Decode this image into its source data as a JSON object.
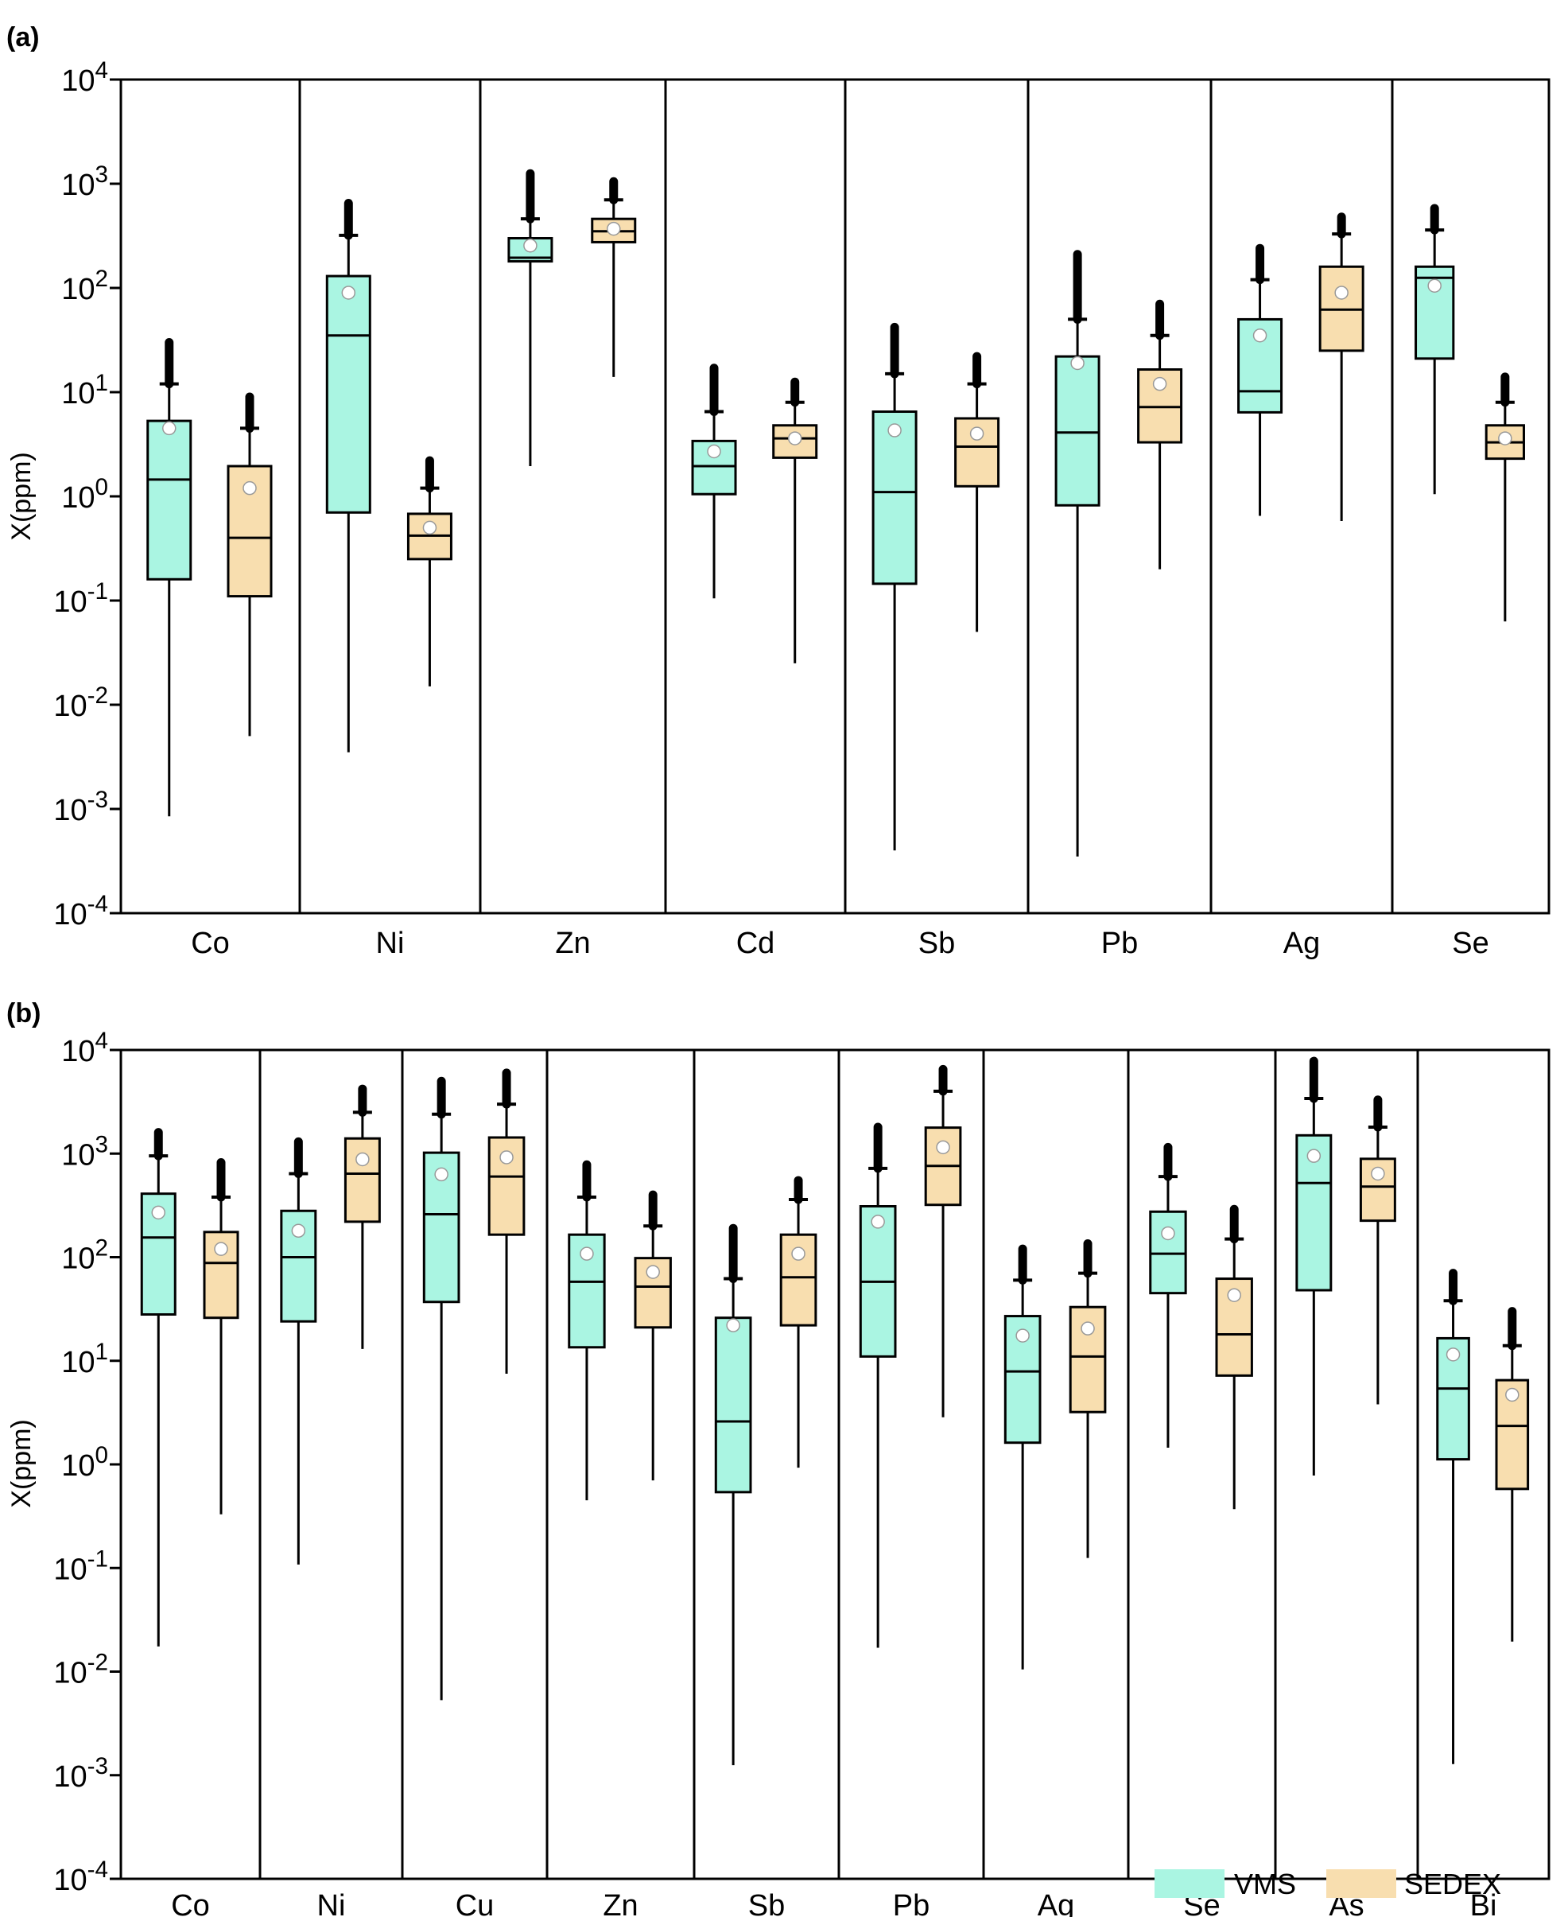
{
  "colors": {
    "vms": "#aaf5e2",
    "sedex": "#f8deaf",
    "axis": "#000000",
    "mean_marker": "#ffffff"
  },
  "legend": {
    "items": [
      {
        "name": "VMS",
        "key": "vms"
      },
      {
        "name": "SEDEX",
        "key": "sedex"
      }
    ],
    "placement": "bottom-right of panel b"
  },
  "chart_data": [
    {
      "type": "box",
      "panel_label": "(a)",
      "ylabel": "X(ppm)",
      "yscale": "log",
      "ylim": [
        0.0001,
        10000
      ],
      "y_ticks": [
        {
          "base": "10",
          "exp": "-4"
        },
        {
          "base": "10",
          "exp": "-3"
        },
        {
          "base": "10",
          "exp": "-2"
        },
        {
          "base": "10",
          "exp": "-1"
        },
        {
          "base": "10",
          "exp": "0"
        },
        {
          "base": "10",
          "exp": "1"
        },
        {
          "base": "10",
          "exp": "2"
        },
        {
          "base": "10",
          "exp": "3"
        },
        {
          "base": "10",
          "exp": "4"
        }
      ],
      "series_names": [
        "VMS",
        "SEDEX"
      ],
      "categories": [
        {
          "label": "Co",
          "vms": {
            "low": 0.00085,
            "q1": 0.16,
            "median": 1.45,
            "q3": 5.3,
            "high": 12,
            "out_max": 30,
            "mean": 4.5
          },
          "sedex": {
            "low": 0.005,
            "q1": 0.11,
            "median": 0.4,
            "q3": 1.95,
            "high": 4.5,
            "out_max": 9,
            "mean": 1.2
          }
        },
        {
          "label": "Ni",
          "vms": {
            "low": 0.0035,
            "q1": 0.7,
            "median": 35,
            "q3": 130,
            "high": 320,
            "out_max": 650,
            "mean": 90
          },
          "sedex": {
            "low": 0.015,
            "q1": 0.25,
            "median": 0.42,
            "q3": 0.68,
            "high": 1.2,
            "out_max": 2.2,
            "mean": 0.5
          }
        },
        {
          "label": "Zn",
          "vms": {
            "low": 1.95,
            "q1": 180,
            "median": 195,
            "q3": 300,
            "high": 460,
            "out_max": 1250,
            "mean": 255
          },
          "sedex": {
            "low": 14,
            "q1": 275,
            "median": 350,
            "q3": 460,
            "high": 700,
            "out_max": 1050,
            "mean": 370
          }
        },
        {
          "label": "Cd",
          "vms": {
            "low": 0.105,
            "q1": 1.05,
            "median": 1.95,
            "q3": 3.4,
            "high": 6.5,
            "out_max": 17,
            "mean": 2.7
          },
          "sedex": {
            "low": 0.025,
            "q1": 2.35,
            "median": 3.6,
            "q3": 4.8,
            "high": 8,
            "out_max": 12.5,
            "mean": 3.6
          }
        },
        {
          "label": "Sb",
          "vms": {
            "low": 0.0004,
            "q1": 0.145,
            "median": 1.1,
            "q3": 6.5,
            "high": 15,
            "out_max": 42,
            "mean": 4.3
          },
          "sedex": {
            "low": 0.05,
            "q1": 1.25,
            "median": 3,
            "q3": 5.6,
            "high": 12,
            "out_max": 22,
            "mean": 4
          }
        },
        {
          "label": "Pb",
          "vms": {
            "low": 0.00035,
            "q1": 0.82,
            "median": 4.1,
            "q3": 22,
            "high": 50,
            "out_max": 210,
            "mean": 19
          },
          "sedex": {
            "low": 0.2,
            "q1": 3.3,
            "median": 7.2,
            "q3": 16.5,
            "high": 35,
            "out_max": 70,
            "mean": 12
          }
        },
        {
          "label": "Ag",
          "vms": {
            "low": 0.65,
            "q1": 6.4,
            "median": 10.2,
            "q3": 50,
            "high": 120,
            "out_max": 240,
            "mean": 35
          },
          "sedex": {
            "low": 0.58,
            "q1": 25,
            "median": 62,
            "q3": 160,
            "high": 330,
            "out_max": 480,
            "mean": 90
          }
        },
        {
          "label": "Se",
          "vms": {
            "low": 1.05,
            "q1": 21,
            "median": 125,
            "q3": 160,
            "high": 360,
            "out_max": 580,
            "mean": 105
          },
          "sedex": {
            "low": 0.063,
            "q1": 2.3,
            "median": 3.3,
            "q3": 4.8,
            "high": 8,
            "out_max": 14,
            "mean": 3.6
          }
        }
      ]
    },
    {
      "type": "box",
      "panel_label": "(b)",
      "ylabel": "X(ppm)",
      "yscale": "log",
      "ylim": [
        0.0001,
        10000
      ],
      "y_ticks": [
        {
          "base": "10",
          "exp": "-4"
        },
        {
          "base": "10",
          "exp": "-3"
        },
        {
          "base": "10",
          "exp": "-2"
        },
        {
          "base": "10",
          "exp": "-1"
        },
        {
          "base": "10",
          "exp": "0"
        },
        {
          "base": "10",
          "exp": "1"
        },
        {
          "base": "10",
          "exp": "2"
        },
        {
          "base": "10",
          "exp": "3"
        },
        {
          "base": "10",
          "exp": "4"
        }
      ],
      "series_names": [
        "VMS",
        "SEDEX"
      ],
      "categories": [
        {
          "label": "Co",
          "vms": {
            "low": 0.0175,
            "q1": 28,
            "median": 155,
            "q3": 410,
            "high": 950,
            "out_max": 1600,
            "mean": 270
          },
          "sedex": {
            "low": 0.33,
            "q1": 26,
            "median": 88,
            "q3": 175,
            "high": 380,
            "out_max": 820,
            "mean": 120
          }
        },
        {
          "label": "Ni",
          "vms": {
            "low": 0.108,
            "q1": 24,
            "median": 100,
            "q3": 280,
            "high": 640,
            "out_max": 1300,
            "mean": 180
          },
          "sedex": {
            "low": 13,
            "q1": 220,
            "median": 640,
            "q3": 1400,
            "high": 2500,
            "out_max": 4200,
            "mean": 880
          }
        },
        {
          "label": "Cu",
          "vms": {
            "low": 0.0053,
            "q1": 37,
            "median": 260,
            "q3": 1020,
            "high": 2400,
            "out_max": 5000,
            "mean": 630
          },
          "sedex": {
            "low": 7.5,
            "q1": 165,
            "median": 600,
            "q3": 1430,
            "high": 3000,
            "out_max": 6000,
            "mean": 920
          }
        },
        {
          "label": "Zn",
          "vms": {
            "low": 0.45,
            "q1": 13.5,
            "median": 58,
            "q3": 165,
            "high": 380,
            "out_max": 780,
            "mean": 108
          },
          "sedex": {
            "low": 0.7,
            "q1": 21,
            "median": 52,
            "q3": 98,
            "high": 200,
            "out_max": 400,
            "mean": 72
          }
        },
        {
          "label": "Sb",
          "vms": {
            "low": 0.00125,
            "q1": 0.54,
            "median": 2.6,
            "q3": 26,
            "high": 62,
            "out_max": 190,
            "mean": 22
          },
          "sedex": {
            "low": 0.93,
            "q1": 22,
            "median": 64,
            "q3": 165,
            "high": 360,
            "out_max": 550,
            "mean": 108
          }
        },
        {
          "label": "Pb",
          "vms": {
            "low": 0.017,
            "q1": 11,
            "median": 58,
            "q3": 310,
            "high": 720,
            "out_max": 1800,
            "mean": 220
          },
          "sedex": {
            "low": 2.85,
            "q1": 320,
            "median": 760,
            "q3": 1780,
            "high": 4000,
            "out_max": 6500,
            "mean": 1150
          }
        },
        {
          "label": "Ag",
          "vms": {
            "low": 0.0105,
            "q1": 1.62,
            "median": 7.9,
            "q3": 27,
            "high": 60,
            "out_max": 120,
            "mean": 17.5
          },
          "sedex": {
            "low": 0.125,
            "q1": 3.2,
            "median": 11,
            "q3": 33,
            "high": 70,
            "out_max": 135,
            "mean": 20.5
          }
        },
        {
          "label": "Se",
          "vms": {
            "low": 1.45,
            "q1": 45,
            "median": 108,
            "q3": 275,
            "high": 600,
            "out_max": 1150,
            "mean": 170
          },
          "sedex": {
            "low": 0.37,
            "q1": 7.2,
            "median": 18,
            "q3": 62,
            "high": 150,
            "out_max": 290,
            "mean": 43
          }
        },
        {
          "label": "As",
          "vms": {
            "low": 0.78,
            "q1": 48,
            "median": 520,
            "q3": 1500,
            "high": 3400,
            "out_max": 7800,
            "mean": 950
          },
          "sedex": {
            "low": 3.8,
            "q1": 225,
            "median": 480,
            "q3": 890,
            "high": 1800,
            "out_max": 3300,
            "mean": 640
          }
        },
        {
          "label": "Bi",
          "vms": {
            "low": 0.00128,
            "q1": 1.12,
            "median": 5.4,
            "q3": 16.5,
            "high": 38,
            "out_max": 70,
            "mean": 11.5
          },
          "sedex": {
            "low": 0.0195,
            "q1": 0.58,
            "median": 2.35,
            "q3": 6.5,
            "high": 14,
            "out_max": 30,
            "mean": 4.7
          }
        }
      ]
    }
  ]
}
